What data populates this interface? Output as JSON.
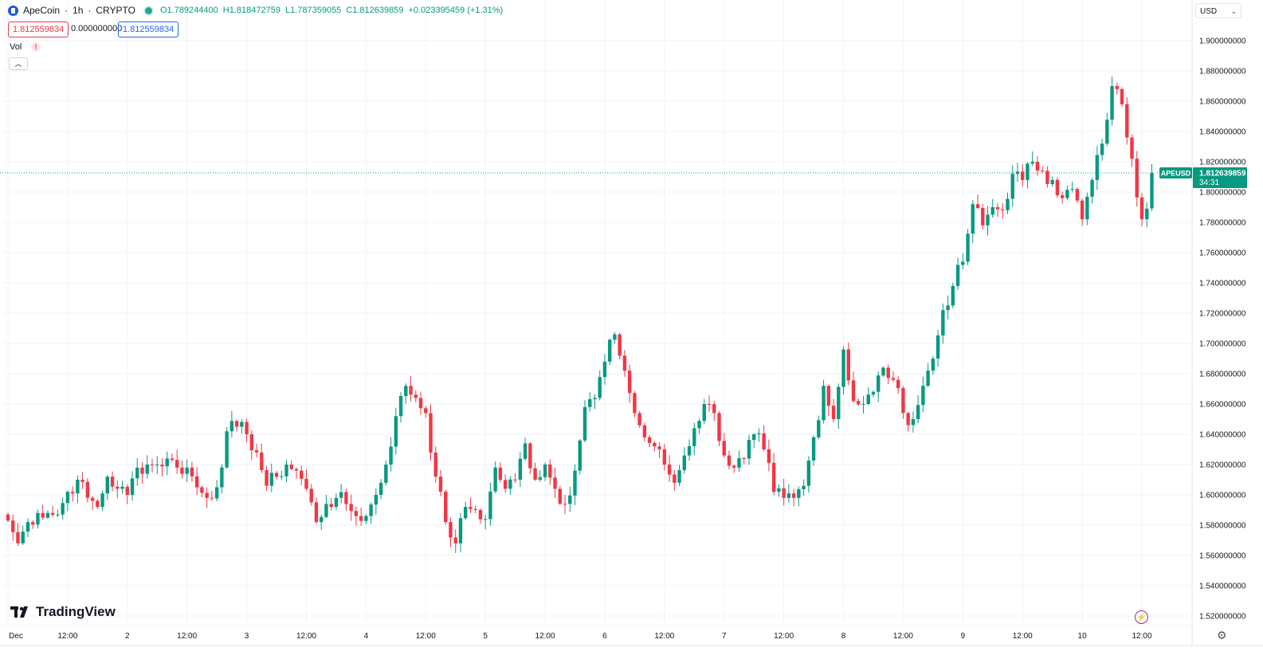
{
  "header": {
    "symbol_name": "ApeCoin",
    "interval": "1h",
    "exchange": "CRYPTO",
    "open": "O1.789244400",
    "high": "H1.818472759",
    "low": "L1.787359055",
    "close": "C1.812639859",
    "change": "+0.023395459 (+1.31%)",
    "sell_price": "1.812559834",
    "spread": "0.000000000",
    "buy_price": "1.812559834"
  },
  "volume_label": "Vol",
  "currency": "USD",
  "brand": "TradingView",
  "last_price_tag": {
    "symbol": "APEUSD",
    "price": "1.812639859",
    "countdown": "34:31"
  },
  "colors": {
    "up": "#089981",
    "down": "#f23645",
    "accent": "#2962ff"
  },
  "chart_data": {
    "type": "candlestick",
    "y_axis_ticks": [
      "1.900000000",
      "1.880000000",
      "1.860000000",
      "1.840000000",
      "1.820000000",
      "1.800000000",
      "1.780000000",
      "1.760000000",
      "1.740000000",
      "1.720000000",
      "1.700000000",
      "1.680000000",
      "1.660000000",
      "1.640000000",
      "1.620000000",
      "1.600000000",
      "1.580000000",
      "1.560000000",
      "1.540000000",
      "1.520000000"
    ],
    "ylim": [
      1.505,
      1.915
    ],
    "x_axis_ticks": [
      {
        "label": "Dec",
        "hour": 0
      },
      {
        "label": "12:00",
        "hour": 12
      },
      {
        "label": "2",
        "hour": 24
      },
      {
        "label": "12:00",
        "hour": 36
      },
      {
        "label": "3",
        "hour": 48
      },
      {
        "label": "12:00",
        "hour": 60
      },
      {
        "label": "4",
        "hour": 72
      },
      {
        "label": "12:00",
        "hour": 84
      },
      {
        "label": "5",
        "hour": 96
      },
      {
        "label": "12:00",
        "hour": 108
      },
      {
        "label": "6",
        "hour": 120
      },
      {
        "label": "12:00",
        "hour": 132
      },
      {
        "label": "7",
        "hour": 144
      },
      {
        "label": "12:00",
        "hour": 156
      },
      {
        "label": "8",
        "hour": 168
      },
      {
        "label": "12:00",
        "hour": 180
      },
      {
        "label": "9",
        "hour": 192
      },
      {
        "label": "12:00",
        "hour": 204
      },
      {
        "label": "10",
        "hour": 216
      },
      {
        "label": "12:00",
        "hour": 228
      }
    ],
    "last_price": 1.812639859,
    "close_anchors": [
      [
        0,
        1.583
      ],
      [
        2,
        1.568
      ],
      [
        4,
        1.582
      ],
      [
        6,
        1.588
      ],
      [
        8,
        1.588
      ],
      [
        10,
        1.587
      ],
      [
        12,
        1.602
      ],
      [
        14,
        1.61
      ],
      [
        16,
        1.598
      ],
      [
        18,
        1.592
      ],
      [
        20,
        1.612
      ],
      [
        22,
        1.604
      ],
      [
        24,
        1.6
      ],
      [
        26,
        1.618
      ],
      [
        28,
        1.62
      ],
      [
        30,
        1.62
      ],
      [
        32,
        1.624
      ],
      [
        34,
        1.618
      ],
      [
        36,
        1.618
      ],
      [
        38,
        1.605
      ],
      [
        40,
        1.598
      ],
      [
        42,
        1.605
      ],
      [
        44,
        1.642
      ],
      [
        46,
        1.645
      ],
      [
        48,
        1.64
      ],
      [
        50,
        1.628
      ],
      [
        52,
        1.606
      ],
      [
        54,
        1.612
      ],
      [
        56,
        1.62
      ],
      [
        58,
        1.616
      ],
      [
        60,
        1.604
      ],
      [
        62,
        1.582
      ],
      [
        64,
        1.594
      ],
      [
        66,
        1.598
      ],
      [
        68,
        1.594
      ],
      [
        70,
        1.586
      ],
      [
        72,
        1.586
      ],
      [
        74,
        1.6
      ],
      [
        76,
        1.62
      ],
      [
        78,
        1.652
      ],
      [
        80,
        1.672
      ],
      [
        82,
        1.664
      ],
      [
        84,
        1.654
      ],
      [
        86,
        1.612
      ],
      [
        88,
        1.582
      ],
      [
        90,
        1.568
      ],
      [
        92,
        1.592
      ],
      [
        94,
        1.59
      ],
      [
        96,
        1.584
      ],
      [
        98,
        1.618
      ],
      [
        100,
        1.604
      ],
      [
        102,
        1.61
      ],
      [
        104,
        1.634
      ],
      [
        106,
        1.61
      ],
      [
        108,
        1.62
      ],
      [
        110,
        1.604
      ],
      [
        112,
        1.594
      ],
      [
        114,
        1.616
      ],
      [
        116,
        1.658
      ],
      [
        118,
        1.664
      ],
      [
        120,
        1.688
      ],
      [
        122,
        1.706
      ],
      [
        124,
        1.682
      ],
      [
        126,
        1.654
      ],
      [
        128,
        1.638
      ],
      [
        130,
        1.632
      ],
      [
        132,
        1.62
      ],
      [
        134,
        1.608
      ],
      [
        136,
        1.626
      ],
      [
        138,
        1.644
      ],
      [
        140,
        1.66
      ],
      [
        142,
        1.654
      ],
      [
        144,
        1.626
      ],
      [
        146,
        1.618
      ],
      [
        148,
        1.624
      ],
      [
        150,
        1.64
      ],
      [
        152,
        1.63
      ],
      [
        154,
        1.602
      ],
      [
        156,
        1.598
      ],
      [
        158,
        1.598
      ],
      [
        160,
        1.606
      ],
      [
        162,
        1.638
      ],
      [
        164,
        1.672
      ],
      [
        166,
        1.65
      ],
      [
        168,
        1.696
      ],
      [
        170,
        1.662
      ],
      [
        172,
        1.66
      ],
      [
        174,
        1.668
      ],
      [
        176,
        1.684
      ],
      [
        178,
        1.676
      ],
      [
        180,
        1.654
      ],
      [
        182,
        1.65
      ],
      [
        184,
        1.672
      ],
      [
        186,
        1.69
      ],
      [
        188,
        1.722
      ],
      [
        190,
        1.738
      ],
      [
        192,
        1.754
      ],
      [
        194,
        1.792
      ],
      [
        196,
        1.778
      ],
      [
        198,
        1.79
      ],
      [
        200,
        1.788
      ],
      [
        202,
        1.812
      ],
      [
        204,
        1.808
      ],
      [
        206,
        1.82
      ],
      [
        208,
        1.814
      ],
      [
        210,
        1.808
      ],
      [
        212,
        1.796
      ],
      [
        214,
        1.802
      ],
      [
        216,
        1.782
      ],
      [
        218,
        1.808
      ],
      [
        220,
        1.832
      ],
      [
        222,
        1.87
      ],
      [
        224,
        1.858
      ],
      [
        226,
        1.822
      ],
      [
        228,
        1.782
      ],
      [
        229,
        1.789
      ],
      [
        230,
        1.8126
      ]
    ]
  }
}
